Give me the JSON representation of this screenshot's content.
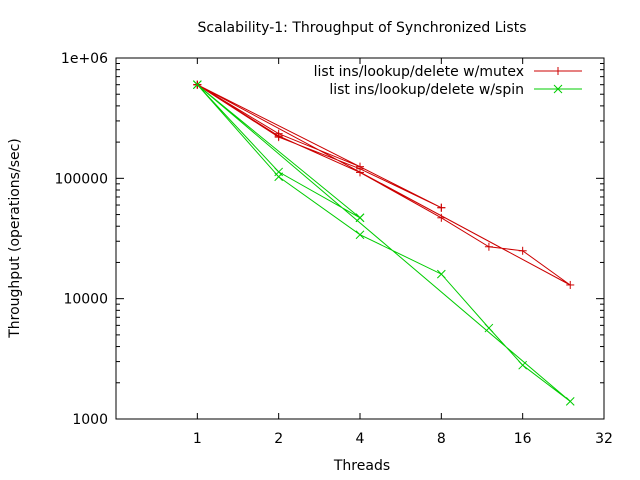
{
  "chart_data": {
    "type": "line",
    "title": "Scalability-1: Throughput of Synchronized Lists",
    "xlabel": "Threads",
    "ylabel": "Throughput (operations/sec)",
    "x_scale": "log2",
    "y_scale": "log10",
    "xlim": [
      0.5,
      32
    ],
    "ylim": [
      1000,
      1000000
    ],
    "x_ticks": [
      {
        "value": 1,
        "label": "1"
      },
      {
        "value": 2,
        "label": "2"
      },
      {
        "value": 4,
        "label": "4"
      },
      {
        "value": 8,
        "label": "8"
      },
      {
        "value": 16,
        "label": "16"
      },
      {
        "value": 32,
        "label": "32"
      }
    ],
    "y_ticks": [
      {
        "value": 1000,
        "label": "1000"
      },
      {
        "value": 10000,
        "label": "10000"
      },
      {
        "value": 100000,
        "label": "100000"
      },
      {
        "value": 1000000,
        "label": "1e+06"
      }
    ],
    "grid": false,
    "legend_position": "top-right",
    "series": [
      {
        "name": "list ins/lookup/delete w/mutex",
        "color": "#cc0000",
        "marker": "plus",
        "points": [
          [
            1,
            600000
          ],
          [
            2,
            225000
          ],
          [
            4,
            112000
          ],
          [
            8,
            47000
          ],
          [
            12,
            27000
          ],
          [
            16,
            25000
          ],
          [
            24,
            13000
          ],
          [
            1,
            600000
          ],
          [
            2,
            235000
          ],
          [
            4,
            125000
          ],
          [
            8,
            57000
          ],
          [
            1,
            600000
          ],
          [
            2,
            220000
          ],
          [
            4,
            120000
          ],
          [
            8,
            57000
          ]
        ]
      },
      {
        "name": "list ins/lookup/delete w/spin",
        "color": "#00cc00",
        "marker": "cross",
        "points": [
          [
            1,
            600000
          ],
          [
            2,
            103000
          ],
          [
            4,
            34000
          ],
          [
            8,
            16000
          ],
          [
            12,
            5700
          ],
          [
            16,
            2800
          ],
          [
            24,
            1400
          ],
          [
            1,
            600000
          ],
          [
            2,
            113000
          ],
          [
            4,
            47000
          ],
          [
            1,
            600000
          ],
          [
            4,
            47000
          ]
        ]
      }
    ]
  }
}
